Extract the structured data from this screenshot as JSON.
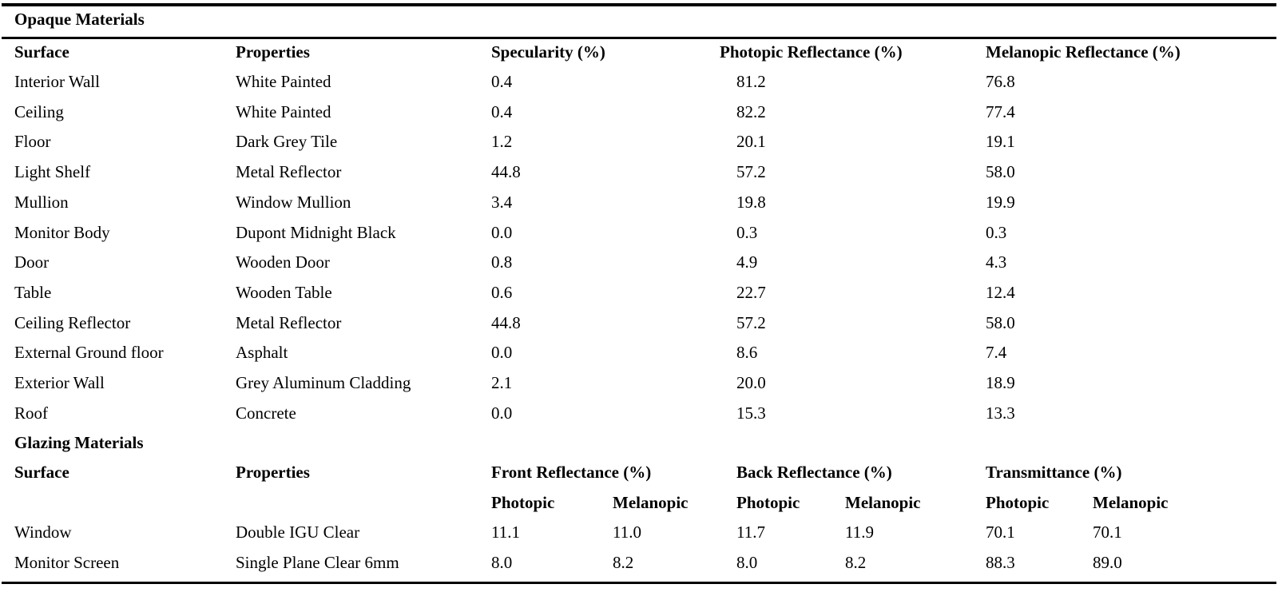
{
  "opaque": {
    "section_title": "Opaque Materials",
    "headers": [
      "Surface",
      "Properties",
      "Specularity (%)",
      "Photopic Reflectance (%)",
      "Melanopic Reflectance (%)"
    ],
    "rows": [
      [
        "Interior Wall",
        "White Painted",
        "0.4",
        "81.2",
        "76.8"
      ],
      [
        "Ceiling",
        "White Painted",
        "0.4",
        "82.2",
        "77.4"
      ],
      [
        "Floor",
        "Dark Grey Tile",
        "1.2",
        "20.1",
        "19.1"
      ],
      [
        "Light Shelf",
        "Metal Reflector",
        "44.8",
        "57.2",
        "58.0"
      ],
      [
        "Mullion",
        "Window Mullion",
        "3.4",
        "19.8",
        "19.9"
      ],
      [
        "Monitor Body",
        "Dupont Midnight Black",
        "0.0",
        "0.3",
        "0.3"
      ],
      [
        "Door",
        "Wooden Door",
        "0.8",
        "4.9",
        "4.3"
      ],
      [
        "Table",
        "Wooden Table",
        "0.6",
        "22.7",
        "12.4"
      ],
      [
        "Ceiling Reflector",
        "Metal Reflector",
        "44.8",
        "57.2",
        "58.0"
      ],
      [
        "External Ground floor",
        "Asphalt",
        "0.0",
        "8.6",
        "7.4"
      ],
      [
        "Exterior Wall",
        "Grey Aluminum Cladding",
        "2.1",
        "20.0",
        "18.9"
      ],
      [
        "Roof",
        "Concrete",
        "0.0",
        "15.3",
        "13.3"
      ]
    ]
  },
  "glazing": {
    "section_title": "Glazing Materials",
    "headers": [
      "Surface",
      "Properties",
      "Front Reflectance (%)",
      "Back Reflectance (%)",
      "Transmittance (%)"
    ],
    "subheaders": [
      "Photopic",
      "Melanopic",
      "Photopic",
      "Melanopic",
      "Photopic",
      "Melanopic"
    ],
    "rows": [
      [
        "Window",
        "Double IGU Clear",
        "11.1",
        "11.0",
        "11.7",
        "11.9",
        "70.1",
        "70.1"
      ],
      [
        "Monitor Screen",
        "Single Plane Clear 6mm",
        "8.0",
        "8.2",
        "8.0",
        "8.2",
        "88.3",
        "89.0"
      ]
    ]
  }
}
